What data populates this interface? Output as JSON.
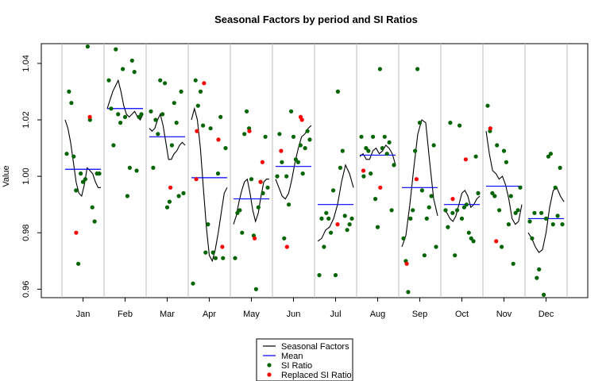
{
  "chart_data": {
    "type": "line",
    "title": "Seasonal Factors by period and SI Ratios",
    "xlabel": "",
    "ylabel": "Value",
    "ylim": [
      0.957,
      1.047
    ],
    "yticks": [
      "0.96",
      "0.98",
      "1.00",
      "1.02",
      "1.04"
    ],
    "ytick_values": [
      0.96,
      0.98,
      1.0,
      1.02,
      1.04
    ],
    "categories": [
      "Jan",
      "Feb",
      "Mar",
      "Apr",
      "May",
      "Jun",
      "Jul",
      "Aug",
      "Sep",
      "Oct",
      "Nov",
      "Dec"
    ],
    "grid": "vertical separators between periods",
    "legend_position": "bottom-center",
    "colors": {
      "seasonal_factors": "#000000",
      "mean": "#0000ff",
      "si_ratio": "#006400",
      "replaced_si_ratio": "#ff0000",
      "separator": "#bebebe"
    },
    "legend": [
      {
        "label": "Seasonal Factors",
        "kind": "line",
        "color": "#000000"
      },
      {
        "label": "Mean",
        "kind": "line",
        "color": "#0000ff"
      },
      {
        "label": "SI Ratio",
        "kind": "point",
        "color": "#006400"
      },
      {
        "label": "Replaced SI Ratio",
        "kind": "point",
        "color": "#ff0000"
      }
    ],
    "periods": [
      {
        "name": "Jan",
        "mean": 1.0025,
        "seasonal_factors": [
          1.02,
          1.017,
          1.012,
          1.005,
          0.998,
          0.994,
          0.993,
          0.997,
          1.003,
          1.002,
          1.001,
          0.998,
          0.996,
          0.996
        ],
        "si_ratio": [
          1.008,
          1.03,
          1.026,
          1.007,
          0.995,
          0.969,
          1.001,
          0.998,
          0.999,
          1.046,
          1.02,
          0.989,
          0.984,
          1.001,
          1.001
        ],
        "replaced_si_ratio": [
          [
            0.29,
            0.98
          ],
          [
            0.71,
            1.021
          ]
        ]
      },
      {
        "name": "Feb",
        "mean": 1.024,
        "seasonal_factors": [
          1.024,
          1.027,
          1.03,
          1.032,
          1.034,
          1.03,
          1.025,
          1.022,
          1.021,
          1.022,
          1.023,
          1.021,
          1.02,
          1.022
        ],
        "si_ratio": [
          1.034,
          1.024,
          1.011,
          1.045,
          1.022,
          1.019,
          1.038,
          1.021,
          0.993,
          1.003,
          1.041,
          1.037,
          1.002,
          1.021,
          1.022
        ],
        "replaced_si_ratio": []
      },
      {
        "name": "Mar",
        "mean": 1.014,
        "seasonal_factors": [
          1.017,
          1.016,
          1.017,
          1.02,
          1.022,
          1.018,
          1.012,
          1.006,
          1.006,
          1.008,
          1.009,
          1.011,
          1.012,
          1.011
        ],
        "si_ratio": [
          1.023,
          1.003,
          1.02,
          1.015,
          1.034,
          1.022,
          1.033,
          0.989,
          0.991,
          1.011,
          1.026,
          1.019,
          0.993,
          1.03,
          0.994
        ],
        "replaced_si_ratio": [
          [
            0.6,
            0.996
          ]
        ]
      },
      {
        "name": "Apr",
        "mean": 0.9995,
        "seasonal_factors": [
          1.02,
          1.024,
          1.02,
          1.01,
          0.996,
          0.982,
          0.972,
          0.97,
          0.974,
          0.98,
          0.987,
          0.994,
          0.996
        ],
        "si_ratio": [
          0.962,
          1.034,
          1.025,
          1.03,
          1.018,
          0.973,
          0.983,
          1.017,
          0.973,
          0.971,
          1.001,
          1.021,
          0.971,
          1.01
        ],
        "replaced_si_ratio": [
          [
            0.12,
            1.016
          ],
          [
            0.34,
            1.033
          ],
          [
            0.78,
            1.013
          ],
          [
            0.9,
            0.975
          ],
          [
            0.1,
            0.999
          ]
        ]
      },
      {
        "name": "May",
        "mean": 0.992,
        "seasonal_factors": [
          0.983,
          0.986,
          0.991,
          0.995,
          0.998,
          0.999,
          0.994,
          0.988,
          0.984,
          0.987,
          0.993,
          0.998,
          0.999,
          0.999
        ],
        "si_ratio": [
          0.971,
          0.987,
          0.988,
          0.98,
          1.015,
          1.023,
          1.017,
          0.999,
          0.979,
          0.96,
          0.989,
          0.998,
          0.994,
          1.014,
          0.996
        ],
        "replaced_si_ratio": [
          [
            0.44,
            1.016
          ],
          [
            0.6,
            0.978
          ],
          [
            0.78,
            0.998
          ],
          [
            0.84,
            1.005
          ]
        ]
      },
      {
        "name": "Jun",
        "mean": 1.0035,
        "seasonal_factors": [
          0.999,
          0.996,
          0.993,
          0.992,
          0.994,
          0.999,
          1.005,
          1.01,
          1.014,
          1.015,
          1.017,
          1.018
        ],
        "si_ratio": [
          1.0,
          1.015,
          1.005,
          0.978,
          1.0,
          0.99,
          1.023,
          1.014,
          1.006,
          1.005,
          1.011,
          1.001,
          1.01,
          1.016,
          1.013
        ],
        "replaced_si_ratio": [
          [
            0.12,
            1.009
          ],
          [
            0.3,
            0.975
          ],
          [
            0.72,
            1.021
          ],
          [
            0.76,
            1.02
          ]
        ]
      },
      {
        "name": "Jul",
        "mean": 0.99,
        "seasonal_factors": [
          0.977,
          0.978,
          0.981,
          0.982,
          0.985,
          0.99,
          0.998,
          1.004,
          1.001,
          0.996
        ],
        "si_ratio": [
          0.965,
          0.985,
          0.975,
          0.987,
          0.985,
          0.98,
          0.995,
          0.965,
          1.03,
          1.003,
          1.009,
          0.986,
          0.981,
          0.983,
          0.985
        ],
        "replaced_si_ratio": [
          [
            0.56,
            0.983
          ]
        ]
      },
      {
        "name": "Aug",
        "mean": 1.0075,
        "seasonal_factors": [
          1.007,
          1.008,
          1.006,
          1.006,
          1.009,
          1.01,
          1.008,
          1.009,
          1.011,
          1.01,
          1.008,
          1.004
        ],
        "si_ratio": [
          1.014,
          1.0,
          1.01,
          1.009,
          1.001,
          1.014,
          0.992,
          0.982,
          1.038,
          1.01,
          1.014,
          1.008,
          1.012,
          0.988,
          1.004
        ],
        "replaced_si_ratio": [
          [
            0.06,
            1.002
          ],
          [
            0.58,
            0.996
          ]
        ]
      },
      {
        "name": "Sep",
        "mean": 0.996,
        "seasonal_factors": [
          0.975,
          0.979,
          0.99,
          1.003,
          1.015,
          1.02,
          1.019,
          1.005,
          0.992,
          0.986
        ],
        "si_ratio": [
          0.978,
          0.97,
          0.959,
          0.985,
          0.988,
          1.009,
          1.038,
          1.019,
          0.995,
          0.972,
          0.985,
          0.989,
          0.993,
          1.011,
          0.975
        ],
        "replaced_si_ratio": [
          [
            0.1,
            0.969
          ],
          [
            0.4,
            0.999
          ]
        ]
      },
      {
        "name": "Oct",
        "mean": 0.99,
        "seasonal_factors": [
          0.988,
          0.987,
          0.985,
          0.984,
          0.986,
          0.99,
          0.994,
          0.995,
          0.993,
          0.989,
          0.99,
          0.992,
          0.993
        ],
        "si_ratio": [
          0.988,
          0.982,
          1.019,
          0.987,
          0.972,
          0.988,
          1.018,
          0.985,
          0.989,
          0.99,
          0.98,
          0.978,
          0.977,
          1.007,
          0.994
        ],
        "replaced_si_ratio": [
          [
            0.22,
            0.992
          ],
          [
            0.62,
            1.006
          ]
        ]
      },
      {
        "name": "Nov",
        "mean": 0.9965,
        "seasonal_factors": [
          1.016,
          1.008,
          1.002,
          1.001,
          0.999,
          1.0,
          0.997,
          0.992,
          0.985,
          0.983,
          0.984,
          0.99
        ],
        "si_ratio": [
          1.025,
          1.016,
          0.994,
          0.993,
          1.011,
          0.988,
          0.975,
          1.009,
          1.005,
          0.983,
          0.993,
          0.969,
          0.987,
          0.988,
          0.996
        ],
        "replaced_si_ratio": [
          [
            0.08,
            1.017
          ],
          [
            0.26,
            0.977
          ]
        ]
      },
      {
        "name": "Dec",
        "mean": 0.985,
        "seasonal_factors": [
          0.98,
          0.978,
          0.975,
          0.973,
          0.974,
          0.98,
          0.989,
          0.995,
          0.996,
          0.993,
          0.991
        ],
        "si_ratio": [
          0.984,
          0.978,
          0.987,
          0.964,
          0.967,
          0.987,
          0.958,
          0.985,
          1.007,
          1.008,
          0.983,
          0.996,
          0.986,
          1.003,
          0.983
        ],
        "replaced_si_ratio": []
      }
    ]
  }
}
